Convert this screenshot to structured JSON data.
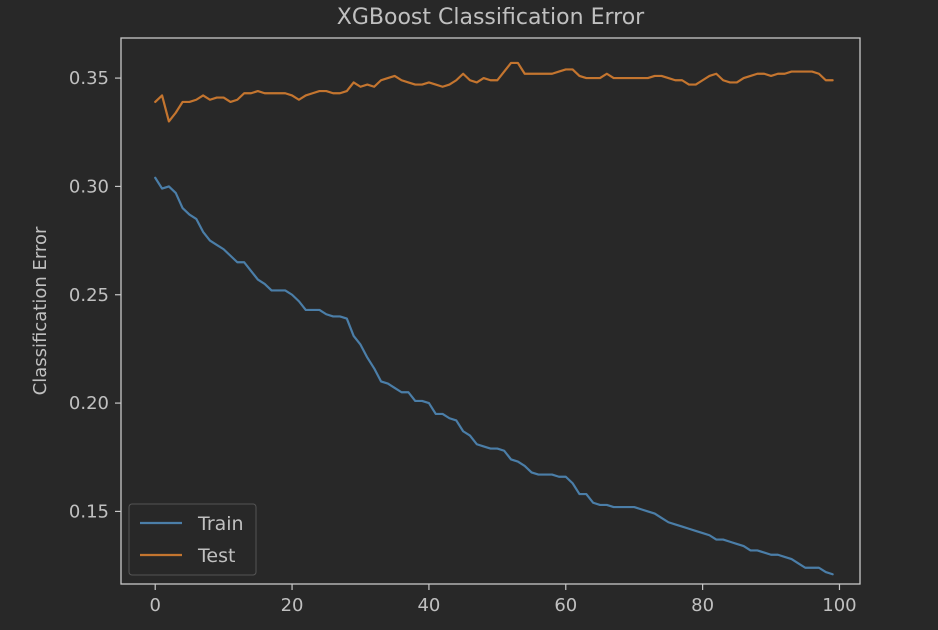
{
  "colors": {
    "background": "#282828",
    "plot_background": "#282828",
    "frame": "#c8c8c8",
    "text": "#c0c0c0",
    "legend_border": "#555555",
    "train": "#4b7ea8",
    "test": "#c4752f"
  },
  "chart_data": {
    "type": "line",
    "title": "XGBoost Classification Error",
    "xlabel": "",
    "ylabel": "Classification Error",
    "xlim": [
      -5,
      103
    ],
    "ylim": [
      0.1165,
      0.3685
    ],
    "xticks": [
      0,
      20,
      40,
      60,
      80,
      100
    ],
    "xtick_labels": [
      "0",
      "20",
      "40",
      "60",
      "80",
      "100"
    ],
    "yticks": [
      0.15,
      0.2,
      0.25,
      0.3,
      0.35
    ],
    "ytick_labels": [
      "0.15",
      "0.20",
      "0.25",
      "0.30",
      "0.35"
    ],
    "grid": false,
    "legend_position": "lower-left",
    "x": [
      0,
      1,
      2,
      3,
      4,
      5,
      6,
      7,
      8,
      9,
      10,
      11,
      12,
      13,
      14,
      15,
      16,
      17,
      18,
      19,
      20,
      21,
      22,
      23,
      24,
      25,
      26,
      27,
      28,
      29,
      30,
      31,
      32,
      33,
      34,
      35,
      36,
      37,
      38,
      39,
      40,
      41,
      42,
      43,
      44,
      45,
      46,
      47,
      48,
      49,
      50,
      51,
      52,
      53,
      54,
      55,
      56,
      57,
      58,
      59,
      60,
      61,
      62,
      63,
      64,
      65,
      66,
      67,
      68,
      69,
      70,
      71,
      72,
      73,
      74,
      75,
      76,
      77,
      78,
      79,
      80,
      81,
      82,
      83,
      84,
      85,
      86,
      87,
      88,
      89,
      90,
      91,
      92,
      93,
      94,
      95,
      96,
      97,
      98,
      99
    ],
    "series": [
      {
        "name": "Train",
        "color": "#4b7ea8",
        "values": [
          0.304,
          0.299,
          0.3,
          0.297,
          0.29,
          0.287,
          0.285,
          0.279,
          0.275,
          0.273,
          0.271,
          0.268,
          0.265,
          0.265,
          0.261,
          0.257,
          0.255,
          0.252,
          0.252,
          0.252,
          0.25,
          0.247,
          0.243,
          0.243,
          0.243,
          0.241,
          0.24,
          0.24,
          0.239,
          0.231,
          0.227,
          0.221,
          0.216,
          0.21,
          0.209,
          0.207,
          0.205,
          0.205,
          0.201,
          0.201,
          0.2,
          0.195,
          0.195,
          0.193,
          0.192,
          0.187,
          0.185,
          0.181,
          0.18,
          0.179,
          0.179,
          0.178,
          0.174,
          0.173,
          0.171,
          0.168,
          0.167,
          0.167,
          0.167,
          0.166,
          0.166,
          0.163,
          0.158,
          0.158,
          0.154,
          0.153,
          0.153,
          0.152,
          0.152,
          0.152,
          0.152,
          0.151,
          0.15,
          0.149,
          0.147,
          0.145,
          0.144,
          0.143,
          0.142,
          0.141,
          0.14,
          0.139,
          0.137,
          0.137,
          0.136,
          0.135,
          0.134,
          0.132,
          0.132,
          0.131,
          0.13,
          0.13,
          0.129,
          0.128,
          0.126,
          0.124,
          0.124,
          0.124,
          0.122,
          0.121
        ]
      },
      {
        "name": "Test",
        "color": "#c4752f",
        "values": [
          0.339,
          0.342,
          0.33,
          0.334,
          0.339,
          0.339,
          0.34,
          0.342,
          0.34,
          0.341,
          0.341,
          0.339,
          0.34,
          0.343,
          0.343,
          0.344,
          0.343,
          0.343,
          0.343,
          0.343,
          0.342,
          0.34,
          0.342,
          0.343,
          0.344,
          0.344,
          0.343,
          0.343,
          0.344,
          0.348,
          0.346,
          0.347,
          0.346,
          0.349,
          0.35,
          0.351,
          0.349,
          0.348,
          0.347,
          0.347,
          0.348,
          0.347,
          0.346,
          0.347,
          0.349,
          0.352,
          0.349,
          0.348,
          0.35,
          0.349,
          0.349,
          0.353,
          0.357,
          0.357,
          0.352,
          0.352,
          0.352,
          0.352,
          0.352,
          0.353,
          0.354,
          0.354,
          0.351,
          0.35,
          0.35,
          0.35,
          0.352,
          0.35,
          0.35,
          0.35,
          0.35,
          0.35,
          0.35,
          0.351,
          0.351,
          0.35,
          0.349,
          0.349,
          0.347,
          0.347,
          0.349,
          0.351,
          0.352,
          0.349,
          0.348,
          0.348,
          0.35,
          0.351,
          0.352,
          0.352,
          0.351,
          0.352,
          0.352,
          0.353,
          0.353,
          0.353,
          0.353,
          0.352,
          0.349,
          0.349
        ]
      }
    ]
  }
}
